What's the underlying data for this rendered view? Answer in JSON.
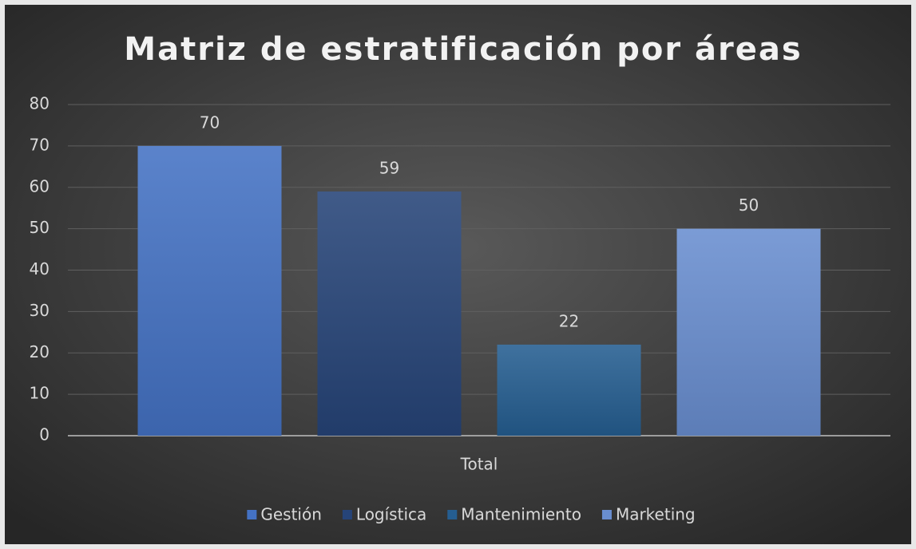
{
  "chart_data": {
    "type": "bar",
    "title": "Matriz de estratificación por áreas",
    "categories": [
      "Total"
    ],
    "series": [
      {
        "name": "Gestión",
        "color": "#4472c4",
        "values": [
          70
        ]
      },
      {
        "name": "Logística",
        "color": "#264478",
        "values": [
          59
        ]
      },
      {
        "name": "Mantenimiento",
        "color": "#255e91",
        "values": [
          22
        ]
      },
      {
        "name": "Marketing",
        "color": "#698ed0",
        "values": [
          50
        ]
      }
    ],
    "ylim": [
      0,
      80
    ],
    "yticks": [
      0,
      10,
      20,
      30,
      40,
      50,
      60,
      70,
      80
    ],
    "grid": true,
    "legend": "bottom"
  }
}
